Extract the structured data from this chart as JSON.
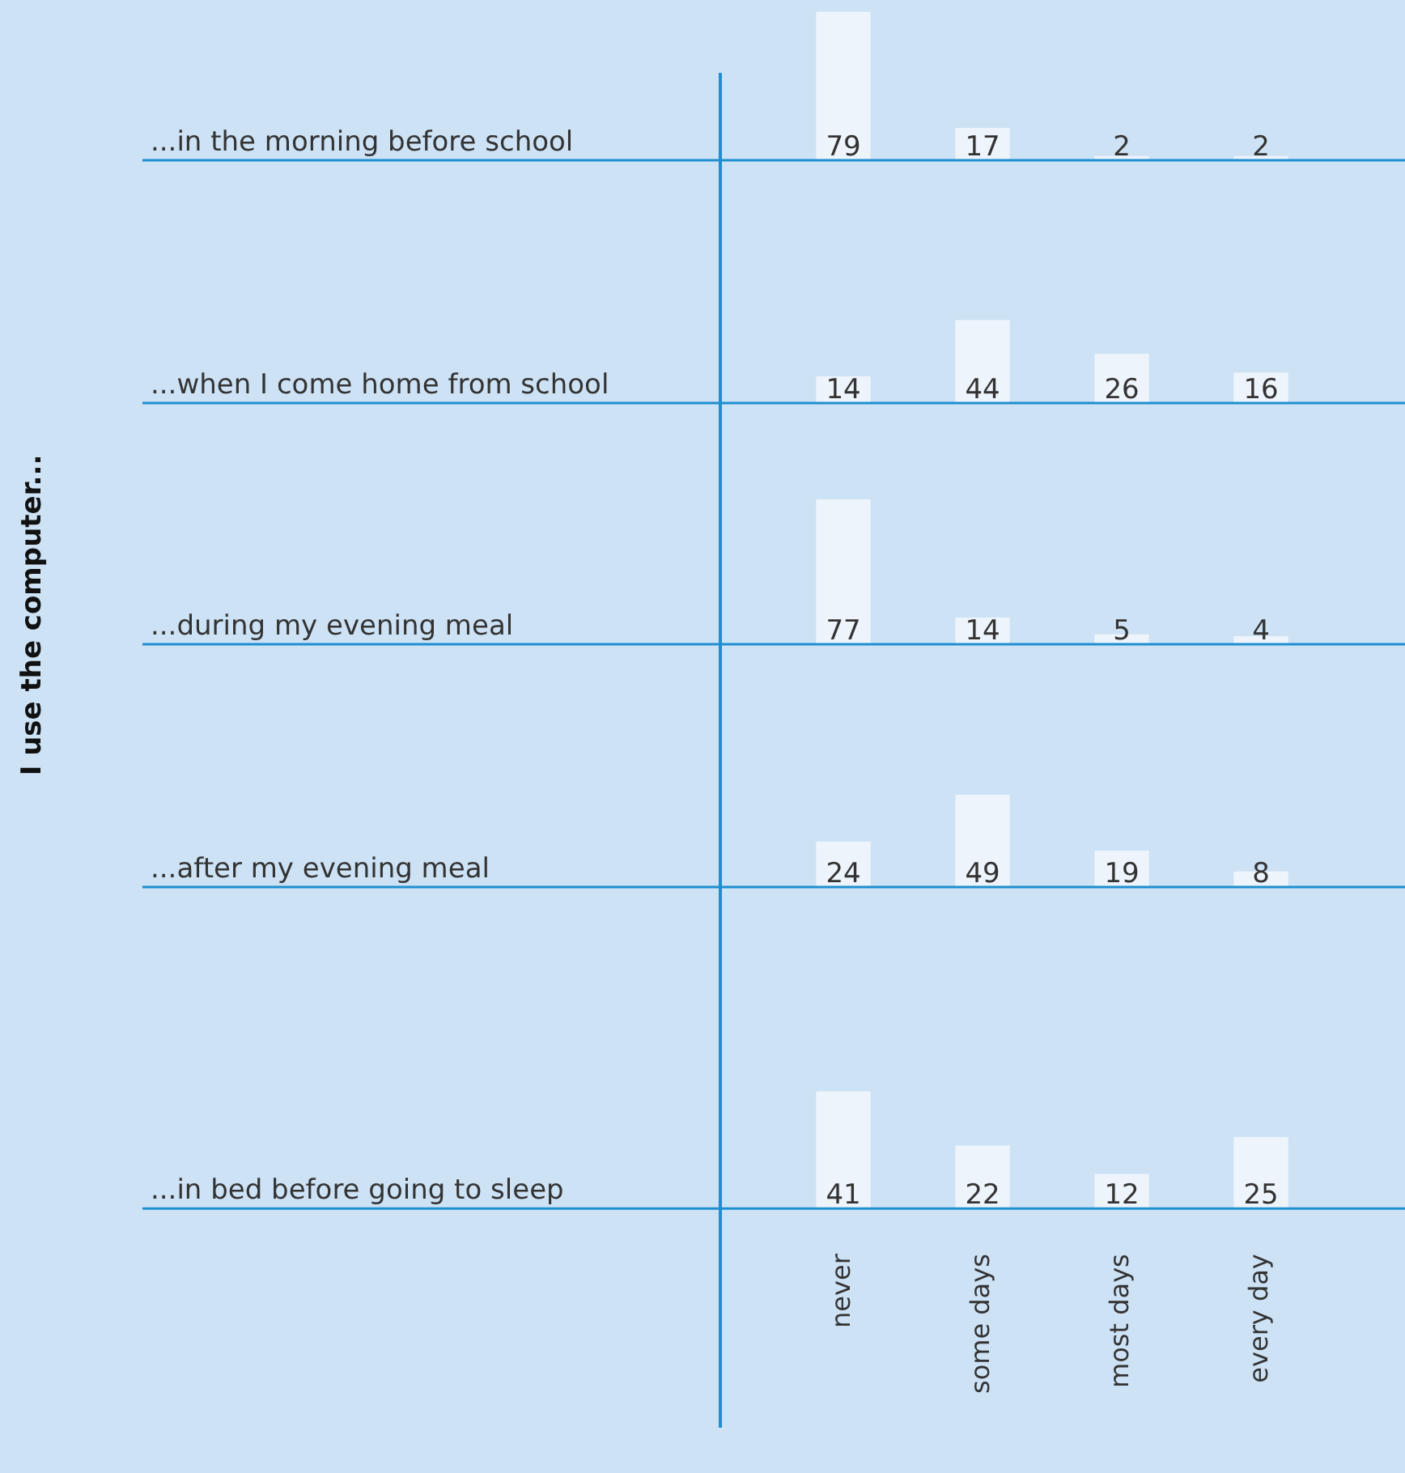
{
  "chart_data": [
    {
      "type": "bar",
      "ylabel": "...in the morning before school",
      "categories": [
        null,
        null,
        null,
        null
      ],
      "values": [
        79,
        17,
        2,
        2
      ],
      "color": "#eef4fb",
      "data_labels": true,
      "grid": false,
      "legend": false
    },
    {
      "type": "bar",
      "ylabel": "...when I come home from school",
      "categories": [
        null,
        null,
        null,
        null
      ],
      "values": [
        14,
        44,
        26,
        16
      ],
      "color": "#eef4fb",
      "data_labels": true,
      "grid": false,
      "legend": false
    },
    {
      "type": "bar",
      "ylabel": "...during my evening meal",
      "annotations": [
        "I use the computer..."
      ],
      "categories": [
        null,
        null,
        null,
        null
      ],
      "values": [
        77,
        14,
        5,
        4
      ],
      "color": "#eef4fb",
      "data_labels": true,
      "grid": false,
      "legend": false
    },
    {
      "type": "bar",
      "ylabel": "...after my evening meal",
      "categories": [
        null,
        null,
        null,
        null
      ],
      "values": [
        24,
        49,
        19,
        8
      ],
      "color": "#eef4fb",
      "data_labels": true,
      "grid": false,
      "legend": false
    },
    {
      "type": "bar",
      "ylabel": "...in bed before going to sleep",
      "categories": [
        "never",
        "some days",
        "most days",
        "every day"
      ],
      "values": [
        41,
        22,
        12,
        25
      ],
      "color": "#eef4fb",
      "data_labels": true,
      "grid": false,
      "legend": false
    }
  ]
}
